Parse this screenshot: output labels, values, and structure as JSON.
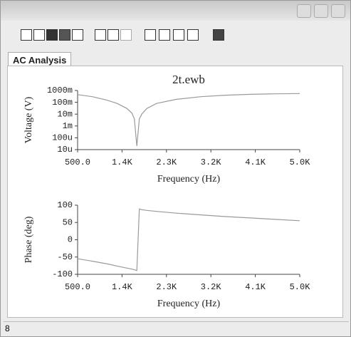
{
  "tab": "AC Analysis",
  "status": "8",
  "chart_data": [
    {
      "type": "line",
      "title": "2t.ewb",
      "xlabel": "Frequency (Hz)",
      "ylabel": "Voltage (V)",
      "log_y": true,
      "xlim": [
        500,
        5000
      ],
      "xticks": [
        {
          "value": 500,
          "label": "500.0"
        },
        {
          "value": 1400,
          "label": "1.4K"
        },
        {
          "value": 2300,
          "label": "2.3K"
        },
        {
          "value": 3200,
          "label": "3.2K"
        },
        {
          "value": 4100,
          "label": "4.1K"
        },
        {
          "value": 5000,
          "label": "5.0K"
        }
      ],
      "ylim": [
        1e-05,
        1
      ],
      "yticks": [
        {
          "value": 1,
          "label": "1000m"
        },
        {
          "value": 0.1,
          "label": "100m"
        },
        {
          "value": 0.01,
          "label": "10m"
        },
        {
          "value": 0.001,
          "label": "1m"
        },
        {
          "value": 0.0001,
          "label": "100u"
        },
        {
          "value": 1e-05,
          "label": "10u"
        }
      ],
      "x": [
        500,
        800,
        1100,
        1300,
        1500,
        1600,
        1650,
        1700,
        1750,
        1800,
        1900,
        2100,
        2500,
        3000,
        3500,
        4000,
        4500,
        5000
      ],
      "series": [
        {
          "color": "#9a9a9a",
          "values": [
            0.45,
            0.3,
            0.15,
            0.08,
            0.03,
            0.012,
            0.004,
            2e-05,
            0.004,
            0.01,
            0.03,
            0.08,
            0.18,
            0.3,
            0.4,
            0.47,
            0.52,
            0.55
          ]
        }
      ]
    },
    {
      "type": "line",
      "xlabel": "Frequency (Hz)",
      "ylabel": "Phase (deg)",
      "xlim": [
        500,
        5000
      ],
      "xticks": [
        {
          "value": 500,
          "label": "500.0"
        },
        {
          "value": 1400,
          "label": "1.4K"
        },
        {
          "value": 2300,
          "label": "2.3K"
        },
        {
          "value": 3200,
          "label": "3.2K"
        },
        {
          "value": 4100,
          "label": "4.1K"
        },
        {
          "value": 5000,
          "label": "5.0K"
        }
      ],
      "ylim": [
        -100,
        100
      ],
      "yticks": [
        -100,
        -50,
        0,
        50,
        100
      ],
      "x": [
        500,
        800,
        1100,
        1300,
        1500,
        1600,
        1650,
        1700,
        1750,
        1800,
        1900,
        2100,
        2500,
        3000,
        3500,
        4000,
        4500,
        5000
      ],
      "series": [
        {
          "color": "#9a9a9a",
          "values": [
            -55,
            -62,
            -70,
            -76,
            -82,
            -85,
            -87,
            -89,
            89,
            87,
            85,
            82,
            77,
            72,
            67,
            63,
            59,
            55
          ]
        }
      ]
    }
  ]
}
